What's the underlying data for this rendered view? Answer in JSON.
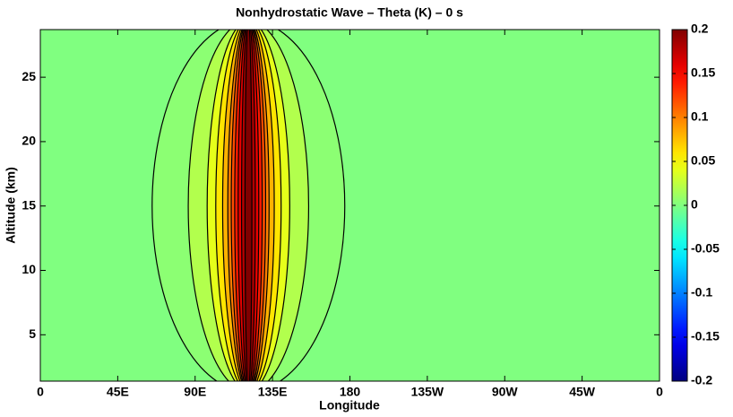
{
  "chart_data": {
    "type": "contour",
    "title": "Nonhydrostatic Wave – Theta (K) – 0 s",
    "x_label": "Longitude",
    "y_label": "Altitude (km)",
    "xlim": [
      0,
      360
    ],
    "xticks": [
      0,
      {
        "value": 45,
        "label": "45E"
      },
      {
        "value": 90,
        "label": "90E"
      },
      {
        "value": 135,
        "label": "135E"
      },
      180,
      {
        "value": 225,
        "label": "135W"
      },
      {
        "value": 270,
        "label": "90W"
      },
      {
        "value": 315,
        "label": "45W"
      },
      {
        "value": 360,
        "label": "0"
      }
    ],
    "ylim": [
      1.4,
      28.7
    ],
    "yticks": [
      5,
      10,
      15,
      20,
      25
    ],
    "background_level": 0,
    "contours": [
      {
        "level": 0.005,
        "lon": [
          65,
          177
        ],
        "alt": [
          0.6,
          29.4
        ]
      },
      {
        "level": 0.02,
        "lon": [
          86,
          156
        ],
        "alt": [
          0.6,
          29.4
        ]
      },
      {
        "level": 0.04,
        "lon": [
          97,
          145
        ],
        "alt": [
          0.6,
          29.4
        ]
      },
      {
        "level": 0.06,
        "lon": [
          102,
          140
        ],
        "alt": [
          0.6,
          29.4
        ]
      },
      {
        "level": 0.08,
        "lon": [
          106,
          136
        ],
        "alt": [
          0.6,
          29.4
        ]
      },
      {
        "level": 0.1,
        "lon": [
          109,
          133
        ],
        "alt": [
          0.6,
          29.4
        ]
      },
      {
        "level": 0.12,
        "lon": [
          111,
          131
        ],
        "alt": [
          0.6,
          29.4
        ]
      },
      {
        "level": 0.14,
        "lon": [
          113,
          129
        ],
        "alt": [
          0.6,
          29.4
        ]
      },
      {
        "level": 0.16,
        "lon": [
          115,
          127
        ],
        "alt": [
          0.6,
          29.4
        ]
      },
      {
        "level": 0.18,
        "lon": [
          117,
          125
        ],
        "alt": [
          0.6,
          29.4
        ]
      },
      {
        "level": 0.2,
        "lon": [
          119,
          123
        ],
        "alt": [
          0.6,
          29.4
        ]
      }
    ],
    "colormap": "jet",
    "clim": [
      -0.2,
      0.2
    ],
    "cticks": [
      -0.2,
      -0.15,
      -0.1,
      -0.05,
      0,
      0.05,
      0.1,
      0.15,
      0.2
    ]
  }
}
